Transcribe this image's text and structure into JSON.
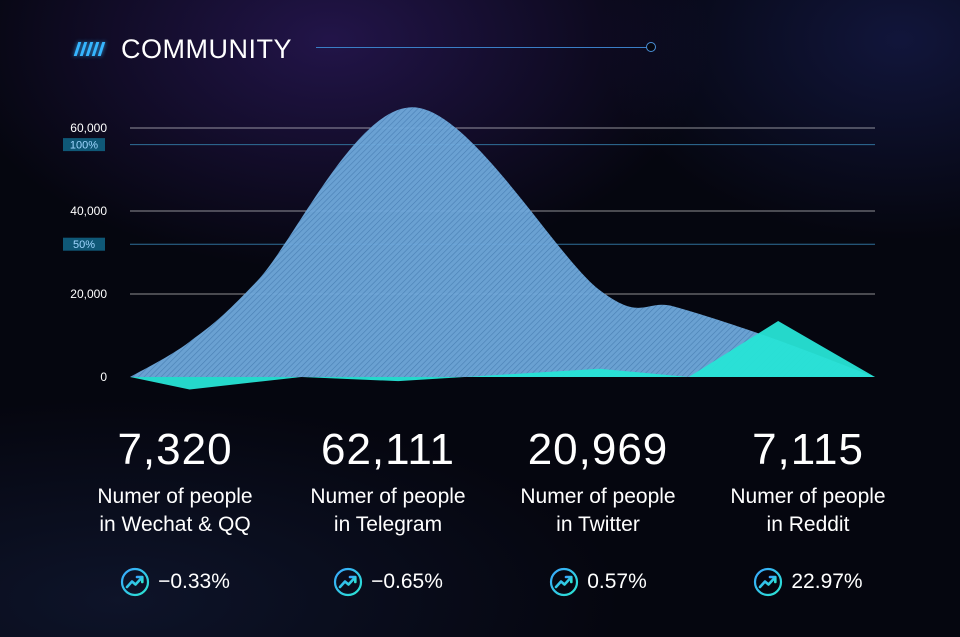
{
  "header": {
    "title": "COMMUNITY"
  },
  "chart_data": {
    "type": "area",
    "y_ticks": [
      "60,000",
      "40,000",
      "20,000",
      "0"
    ],
    "y_tick_values": [
      60000,
      40000,
      20000,
      0
    ],
    "pct_markers": [
      {
        "label": "100%",
        "value": 56000
      },
      {
        "label": "50%",
        "value": 32000
      }
    ],
    "ylim": [
      0,
      60000
    ],
    "grid": true,
    "series": [
      {
        "color": "#6fa9dc",
        "style": "hatched",
        "x": [
          0,
          0.08,
          0.17,
          0.38,
          0.63,
          0.73,
          0.86,
          1.0
        ],
        "y": [
          0,
          8500,
          23000,
          65000,
          21000,
          17000,
          9500,
          0
        ]
      },
      {
        "color": "#27e4d6",
        "style": "solid",
        "x": [
          0,
          0.08,
          0.23,
          0.36,
          0.63,
          0.75,
          0.87,
          1.0
        ],
        "y": [
          0,
          -3000,
          0,
          -1000,
          2000,
          0,
          13500,
          0
        ]
      }
    ]
  },
  "stats": [
    {
      "value": "7,320",
      "label_line1": "Numer of people",
      "label_line2": "in Wechat & QQ",
      "change": "−0.33%"
    },
    {
      "value": "62,111",
      "label_line1": "Numer of people",
      "label_line2": "in Telegram",
      "change": "−0.65%"
    },
    {
      "value": "20,969",
      "label_line1": "Numer of people",
      "label_line2": "in Twitter",
      "change": "0.57%"
    },
    {
      "value": "7,115",
      "label_line1": "Numer of people",
      "label_line2": "in Reddit",
      "change": "22.97%"
    }
  ],
  "icons": {
    "trend": "trend-up-icon",
    "header_bars": "bars-icon"
  },
  "colors": {
    "accent": "#37b6ff",
    "area_blue": "#6fa9dc",
    "area_cyan": "#27e4d6",
    "background": "#05060f"
  }
}
